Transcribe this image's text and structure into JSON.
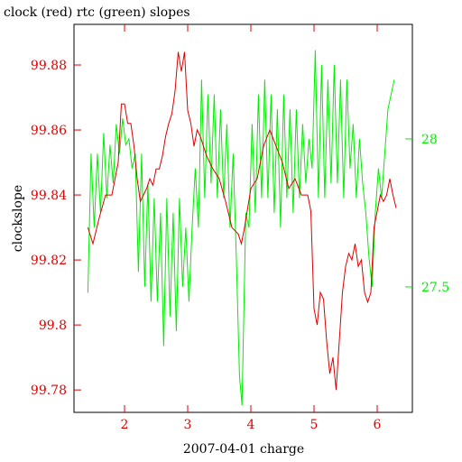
{
  "chart_data": {
    "type": "line",
    "title": "clock (red) rtc (green) slopes",
    "x_label": "2007-04-01 charge",
    "y_label": "clockslope",
    "xlim": [
      1.2,
      6.557
    ],
    "xticks": [
      2,
      3,
      4,
      5,
      6
    ],
    "ylim": [
      99.7731,
      99.8925
    ],
    "yticks": [
      99.78,
      99.8,
      99.82,
      99.84,
      99.86,
      99.88
    ],
    "y2lim": [
      27.076,
      28.387
    ],
    "y2ticks": [
      27.5,
      28
    ],
    "series": [
      {
        "name": "clock",
        "color": "#dd0000",
        "x": [
          1.42,
          1.5,
          1.6,
          1.7,
          1.8,
          1.9,
          1.95,
          2.0,
          2.05,
          2.1,
          2.15,
          2.2,
          2.25,
          2.3,
          2.35,
          2.4,
          2.45,
          2.5,
          2.55,
          2.6,
          2.65,
          2.7,
          2.75,
          2.8,
          2.85,
          2.9,
          2.95,
          3.0,
          3.05,
          3.1,
          3.15,
          3.2,
          3.3,
          3.4,
          3.5,
          3.6,
          3.7,
          3.8,
          3.85,
          3.9,
          4.0,
          4.1,
          4.2,
          4.3,
          4.4,
          4.5,
          4.6,
          4.7,
          4.8,
          4.9,
          4.95,
          5.0,
          5.05,
          5.1,
          5.15,
          5.2,
          5.25,
          5.3,
          5.35,
          5.4,
          5.45,
          5.5,
          5.55,
          5.6,
          5.65,
          5.7,
          5.75,
          5.8,
          5.85,
          5.9,
          5.95,
          6.0,
          6.05,
          6.1,
          6.15,
          6.2,
          6.25,
          6.3
        ],
        "values": [
          99.83,
          99.825,
          99.833,
          99.84,
          99.84,
          99.85,
          99.868,
          99.868,
          99.862,
          99.862,
          99.855,
          99.845,
          99.838,
          99.84,
          99.842,
          99.845,
          99.843,
          99.848,
          99.848,
          99.852,
          99.858,
          99.862,
          99.865,
          99.872,
          99.884,
          99.878,
          99.884,
          99.866,
          99.862,
          99.855,
          99.86,
          99.858,
          99.852,
          99.848,
          99.845,
          99.838,
          99.83,
          99.828,
          99.825,
          99.83,
          99.842,
          99.845,
          99.855,
          99.86,
          99.855,
          99.85,
          99.842,
          99.845,
          99.84,
          99.84,
          99.835,
          99.805,
          99.8,
          99.81,
          99.808,
          99.795,
          99.785,
          99.79,
          99.78,
          99.795,
          99.81,
          99.818,
          99.822,
          99.82,
          99.825,
          99.818,
          99.82,
          99.81,
          99.807,
          99.81,
          99.83,
          99.835,
          99.84,
          99.838,
          99.84,
          99.845,
          99.84,
          99.836
        ]
      },
      {
        "name": "rtc",
        "color": "#00ee00",
        "axis": "y2",
        "x": [
          1.42,
          1.47,
          1.52,
          1.57,
          1.62,
          1.67,
          1.72,
          1.77,
          1.82,
          1.87,
          1.92,
          1.97,
          2.02,
          2.07,
          2.12,
          2.17,
          2.22,
          2.27,
          2.32,
          2.37,
          2.42,
          2.47,
          2.52,
          2.57,
          2.62,
          2.67,
          2.72,
          2.77,
          2.82,
          2.87,
          2.92,
          2.97,
          3.02,
          3.07,
          3.12,
          3.17,
          3.22,
          3.27,
          3.32,
          3.37,
          3.42,
          3.47,
          3.52,
          3.57,
          3.62,
          3.67,
          3.72,
          3.77,
          3.82,
          3.86,
          3.92,
          3.97,
          4.02,
          4.07,
          4.12,
          4.17,
          4.22,
          4.27,
          4.32,
          4.37,
          4.42,
          4.47,
          4.52,
          4.57,
          4.62,
          4.67,
          4.72,
          4.77,
          4.82,
          4.87,
          4.92,
          4.97,
          5.02,
          5.07,
          5.12,
          5.17,
          5.22,
          5.27,
          5.32,
          5.37,
          5.42,
          5.47,
          5.52,
          5.57,
          5.62,
          5.67,
          5.72,
          5.77,
          5.82,
          5.87,
          5.92,
          5.97,
          6.02,
          6.07,
          6.12,
          6.17,
          6.22,
          6.27
        ],
        "values": [
          27.48,
          27.95,
          27.7,
          27.95,
          27.75,
          28.02,
          27.8,
          27.98,
          27.85,
          28.05,
          27.95,
          28.07,
          27.98,
          28.0,
          27.9,
          27.95,
          27.55,
          27.95,
          27.5,
          27.85,
          27.45,
          27.8,
          27.45,
          27.75,
          27.3,
          27.8,
          27.4,
          27.75,
          27.35,
          27.8,
          27.5,
          27.7,
          27.45,
          27.7,
          27.9,
          27.7,
          28.2,
          27.8,
          28.15,
          27.85,
          28.15,
          27.8,
          28.1,
          27.8,
          28.05,
          27.7,
          27.95,
          27.6,
          27.2,
          27.1,
          27.75,
          27.7,
          28.05,
          27.75,
          28.15,
          27.8,
          28.2,
          27.8,
          28.15,
          27.75,
          28.1,
          27.7,
          28.15,
          27.8,
          28.1,
          27.75,
          28.1,
          27.8,
          28.05,
          27.85,
          28.0,
          27.9,
          28.3,
          27.8,
          28.25,
          27.8,
          28.2,
          27.85,
          28.25,
          27.85,
          28.2,
          27.8,
          28.2,
          27.9,
          28.05,
          27.8,
          28.0,
          27.85,
          27.75,
          27.6,
          27.5,
          27.75,
          27.9,
          27.8,
          27.95,
          28.1,
          28.15,
          28.2
        ]
      }
    ]
  }
}
